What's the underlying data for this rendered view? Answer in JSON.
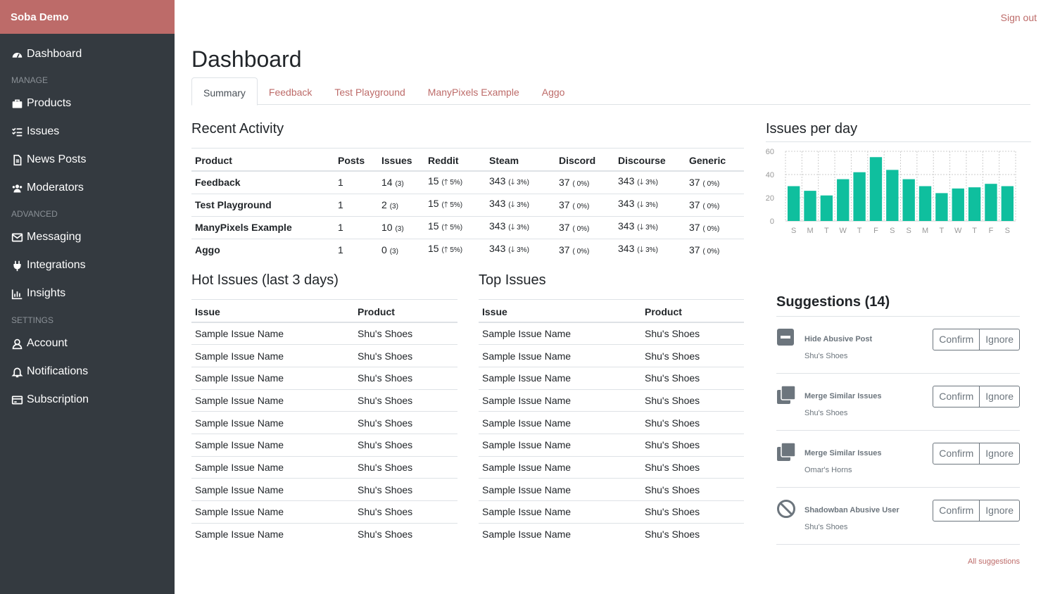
{
  "brand": "Soba Demo",
  "nav": {
    "dashboard": "Dashboard",
    "manage_head": "MANAGE",
    "products": "Products",
    "issues": "Issues",
    "news": "News Posts",
    "moderators": "Moderators",
    "advanced_head": "ADVANCED",
    "messaging": "Messaging",
    "integrations": "Integrations",
    "insights": "Insights",
    "settings_head": "SETTINGS",
    "account": "Account",
    "notifications": "Notifications",
    "subscription": "Subscription"
  },
  "header": {
    "signout": "Sign out",
    "title": "Dashboard"
  },
  "tabs": [
    "Summary",
    "Feedback",
    "Test Playground",
    "ManyPixels Example",
    "Aggo"
  ],
  "recent": {
    "title": "Recent Activity",
    "columns": [
      "Product",
      "Posts",
      "Issues",
      "Reddit",
      "Steam",
      "Discord",
      "Discourse",
      "Generic"
    ],
    "rows": [
      {
        "product": "Feedback",
        "posts": "1",
        "issues": "14",
        "issues_d": "(3)",
        "reddit": "15",
        "reddit_d": "5%",
        "steam": "343",
        "steam_d": "3%",
        "discord": "37",
        "discord_d": "( 0%)",
        "discourse": "343",
        "discourse_d": "3%",
        "generic": "37",
        "generic_d": "( 0%)"
      },
      {
        "product": "Test Playground",
        "posts": "1",
        "issues": "2",
        "issues_d": "(3)",
        "reddit": "15",
        "reddit_d": "5%",
        "steam": "343",
        "steam_d": "3%",
        "discord": "37",
        "discord_d": "( 0%)",
        "discourse": "343",
        "discourse_d": "3%",
        "generic": "37",
        "generic_d": "( 0%)"
      },
      {
        "product": "ManyPixels Example",
        "posts": "1",
        "issues": "10",
        "issues_d": "(3)",
        "reddit": "15",
        "reddit_d": "5%",
        "steam": "343",
        "steam_d": "3%",
        "discord": "37",
        "discord_d": "( 0%)",
        "discourse": "343",
        "discourse_d": "3%",
        "generic": "37",
        "generic_d": "( 0%)"
      },
      {
        "product": "Aggo",
        "posts": "1",
        "issues": "0",
        "issues_d": "(3)",
        "reddit": "15",
        "reddit_d": "5%",
        "steam": "343",
        "steam_d": "3%",
        "discord": "37",
        "discord_d": "( 0%)",
        "discourse": "343",
        "discourse_d": "3%",
        "generic": "37",
        "generic_d": "( 0%)"
      }
    ]
  },
  "hot": {
    "title": "Hot Issues (last 3 days)",
    "columns": [
      "Issue",
      "Product"
    ],
    "rows": [
      [
        "Sample Issue Name",
        "Shu's Shoes"
      ],
      [
        "Sample Issue Name",
        "Shu's Shoes"
      ],
      [
        "Sample Issue Name",
        "Shu's Shoes"
      ],
      [
        "Sample Issue Name",
        "Shu's Shoes"
      ],
      [
        "Sample Issue Name",
        "Shu's Shoes"
      ],
      [
        "Sample Issue Name",
        "Shu's Shoes"
      ],
      [
        "Sample Issue Name",
        "Shu's Shoes"
      ],
      [
        "Sample Issue Name",
        "Shu's Shoes"
      ],
      [
        "Sample Issue Name",
        "Shu's Shoes"
      ],
      [
        "Sample Issue Name",
        "Shu's Shoes"
      ]
    ]
  },
  "top": {
    "title": "Top Issues",
    "columns": [
      "Issue",
      "Product"
    ],
    "rows": [
      [
        "Sample Issue Name",
        "Shu's Shoes"
      ],
      [
        "Sample Issue Name",
        "Shu's Shoes"
      ],
      [
        "Sample Issue Name",
        "Shu's Shoes"
      ],
      [
        "Sample Issue Name",
        "Shu's Shoes"
      ],
      [
        "Sample Issue Name",
        "Shu's Shoes"
      ],
      [
        "Sample Issue Name",
        "Shu's Shoes"
      ],
      [
        "Sample Issue Name",
        "Shu's Shoes"
      ],
      [
        "Sample Issue Name",
        "Shu's Shoes"
      ],
      [
        "Sample Issue Name",
        "Shu's Shoes"
      ],
      [
        "Sample Issue Name",
        "Shu's Shoes"
      ]
    ]
  },
  "chart_title": "Issues per day",
  "chart_data": {
    "type": "bar",
    "title": "Issues per day",
    "categories": [
      "S",
      "M",
      "T",
      "W",
      "T",
      "F",
      "S",
      "S",
      "M",
      "T",
      "W",
      "T",
      "F",
      "S"
    ],
    "values": [
      30,
      26,
      22,
      36,
      42,
      55,
      44,
      36,
      30,
      24,
      28,
      29,
      32,
      30
    ],
    "ylim": [
      0,
      60
    ],
    "yticks": [
      0,
      20,
      40,
      60
    ],
    "color": "#0fbf9e",
    "grid": true
  },
  "suggestions": {
    "title": "Suggestions (14)",
    "confirm": "Confirm",
    "ignore": "Ignore",
    "all": "All suggestions",
    "items": [
      {
        "name": "Hide Abusive Post",
        "product": "Shu's Shoes",
        "icon": "minus-square-icon"
      },
      {
        "name": "Merge Similar Issues",
        "product": "Shu's Shoes",
        "icon": "copy-icon"
      },
      {
        "name": "Merge Similar Issues",
        "product": "Omar's Horns",
        "icon": "copy-icon"
      },
      {
        "name": "Shadowban Abusive User",
        "product": "Shu's Shoes",
        "icon": "ban-icon"
      }
    ]
  },
  "colors": {
    "brand": "#bd6b69",
    "sidebar": "#343a40",
    "bar": "#0fbf9e"
  }
}
